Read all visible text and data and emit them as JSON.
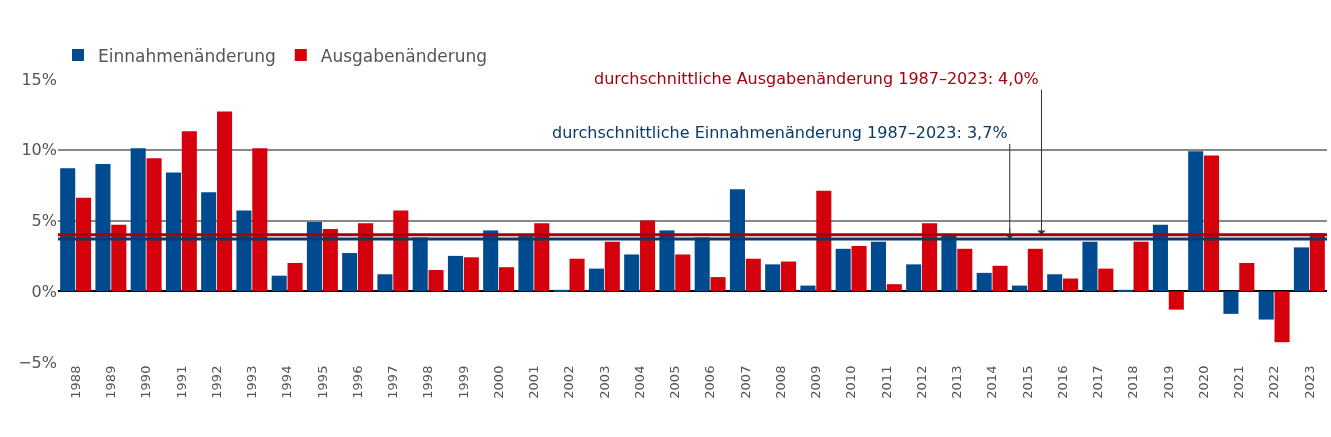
{
  "chart_data": {
    "type": "bar",
    "categories": [
      "1988",
      "1989",
      "1990",
      "1991",
      "1992",
      "1993",
      "1994",
      "1995",
      "1996",
      "1997",
      "1998",
      "1999",
      "2000",
      "2001",
      "2002",
      "2003",
      "2004",
      "2005",
      "2006",
      "2007",
      "2008",
      "2009",
      "2010",
      "2011",
      "2012",
      "2013",
      "2014",
      "2015",
      "2016",
      "2017",
      "2018",
      "2019",
      "2020",
      "2021",
      "2022",
      "2023"
    ],
    "series": [
      {
        "name": "Einnahmenänderung",
        "color": "#004a8f",
        "values": [
          8.7,
          9.0,
          10.1,
          8.4,
          7.0,
          5.7,
          1.1,
          4.9,
          2.7,
          1.2,
          3.8,
          2.5,
          4.3,
          3.9,
          0.1,
          1.6,
          2.6,
          4.3,
          3.8,
          7.2,
          1.9,
          0.4,
          3.0,
          3.5,
          1.9,
          4.0,
          1.3,
          0.4,
          1.2,
          3.5,
          0.1,
          4.7,
          9.9,
          -1.6,
          -2.0,
          3.1
        ]
      },
      {
        "name": "Ausgabenänderung",
        "color": "#d4000b",
        "values": [
          6.6,
          4.7,
          9.4,
          11.3,
          12.7,
          10.1,
          2.0,
          4.4,
          4.8,
          5.7,
          1.5,
          2.4,
          1.7,
          4.8,
          2.3,
          3.5,
          5.0,
          2.6,
          1.0,
          2.3,
          2.1,
          7.1,
          3.2,
          0.5,
          4.8,
          3.0,
          1.8,
          3.0,
          0.9,
          1.6,
          3.5,
          -1.3,
          9.6,
          2.0,
          -3.6,
          4.1
        ]
      }
    ],
    "ylim": [
      -5,
      15
    ],
    "yticks": [
      {
        "value": -5,
        "label": "−5%"
      },
      {
        "value": 0,
        "label": "0%"
      },
      {
        "value": 5,
        "label": "5%"
      },
      {
        "value": 10,
        "label": "10%"
      },
      {
        "value": 15,
        "label": "15%"
      }
    ],
    "grid": "y",
    "legend": "top left",
    "ref_lines": [
      {
        "axis": "y",
        "value": 4.0,
        "label": "durchschnittliche Ausgabenänderung 1987–2023: 4,0%",
        "color": "#a50010"
      },
      {
        "axis": "y",
        "value": 3.7,
        "label": "durchschnittliche Einnahmenänderung 1987–2023: 3,7%",
        "color": "#0a3a66"
      }
    ]
  }
}
